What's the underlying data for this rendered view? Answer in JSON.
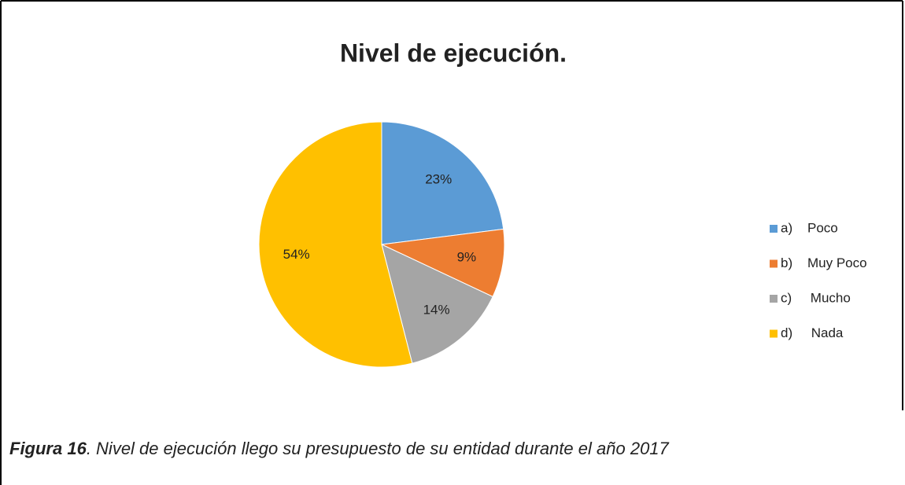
{
  "chart_data": {
    "type": "pie",
    "title": "Nivel de ejecución.",
    "categories": [
      "a)    Poco",
      "b)    Muy Poco",
      "c)     Mucho",
      "d)     Nada"
    ],
    "values": [
      23,
      9,
      14,
      54
    ],
    "value_labels": [
      "23%",
      "9%",
      "14%",
      "54%"
    ],
    "colors": [
      "#5b9bd5",
      "#ed7d31",
      "#a5a5a5",
      "#ffc000"
    ],
    "legend": "right"
  },
  "caption": {
    "number": "Figura 16",
    "text": ". Nivel de ejecución llego su presupuesto de su entidad durante el año 2017"
  }
}
